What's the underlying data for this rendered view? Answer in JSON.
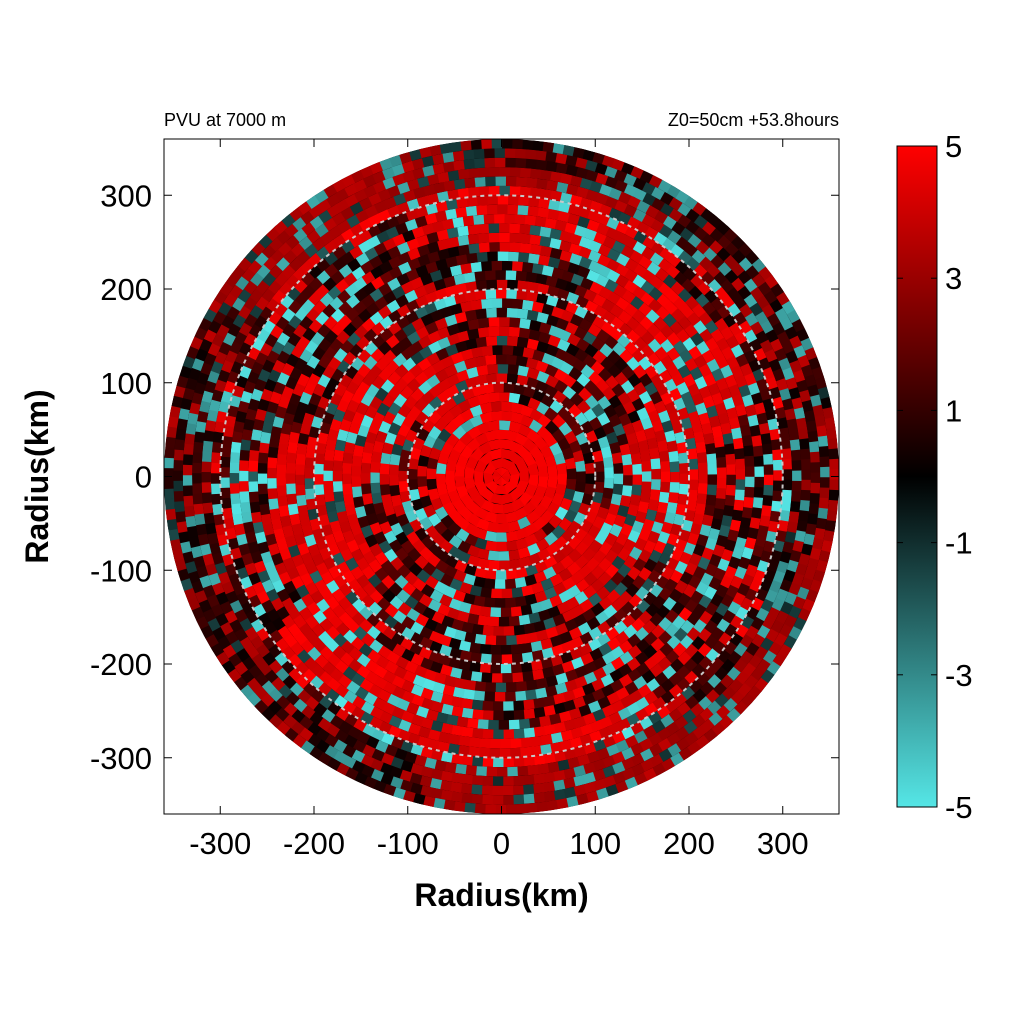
{
  "chart_data": {
    "type": "heatmap",
    "subtitle_left": "PVU at  7000 m",
    "subtitle_right": "Z0=50cm  +53.8hours",
    "xlabel": "Radius(km)",
    "ylabel": "Radius(km)",
    "xlim": [
      -360,
      360
    ],
    "ylim": [
      -360,
      360
    ],
    "x_ticks": [
      -300,
      -200,
      -100,
      0,
      100,
      200,
      300
    ],
    "y_ticks": [
      300,
      200,
      100,
      0,
      -100,
      -200,
      -300
    ],
    "field_extent_km": 360,
    "reference_circles_km": [
      100,
      200,
      300
    ],
    "colorbar": {
      "min": -5,
      "max": 5,
      "ticks": [
        5,
        3,
        1,
        -1,
        -3,
        -5
      ],
      "colors": [
        "#55e6e6",
        "#000000",
        "#ff0000"
      ]
    },
    "description_values": {
      "core_pvu": 5,
      "core_radius_km": 70
    }
  }
}
